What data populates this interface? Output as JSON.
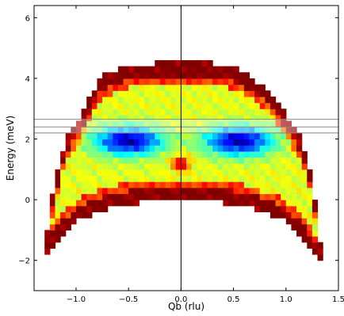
{
  "chart_data": {
    "type": "heatmap",
    "title": "",
    "xlabel": "Qb (rlu)",
    "ylabel": "Energy (meV)",
    "xlim": [
      -1.4,
      1.5
    ],
    "ylim": [
      -3.0,
      6.4
    ],
    "xticks": [
      -1.0,
      -0.5,
      0.0,
      0.5,
      1.0,
      1.5
    ],
    "xtick_labels": [
      "−1.0",
      "−0.5",
      "0.0",
      "0.5",
      "1.0",
      "1.5"
    ],
    "yticks": [
      -2,
      0,
      2,
      4,
      6
    ],
    "ytick_labels": [
      "−2",
      "0",
      "2",
      "4",
      "6"
    ],
    "grid": false,
    "colormap": "jet",
    "color_range": [
      0,
      1
    ],
    "vertical_line_x": 0.0,
    "horizontal_lines_y": [
      2.2,
      2.4,
      2.65
    ],
    "highlight_band_y": [
      2.2,
      2.65
    ],
    "cell_size": {
      "dx": 0.05,
      "dy": 0.2
    },
    "data_region": {
      "bottom_edge": [
        [
          -1.3,
          -1.8
        ],
        [
          -1.15,
          -1.2
        ],
        [
          -0.95,
          -0.6
        ],
        [
          -0.6,
          -0.2
        ],
        [
          -0.2,
          0.0
        ],
        [
          0.0,
          0.0
        ],
        [
          0.2,
          0.0
        ],
        [
          0.6,
          -0.2
        ],
        [
          0.95,
          -0.6
        ],
        [
          1.15,
          -1.2
        ],
        [
          1.35,
          -2.2
        ]
      ],
      "top_edge": [
        [
          -1.3,
          -1.8
        ],
        [
          -1.25,
          -0.2
        ],
        [
          -1.1,
          2.0
        ],
        [
          -0.95,
          2.7
        ],
        [
          -0.85,
          3.5
        ],
        [
          -0.75,
          4.1
        ],
        [
          -0.45,
          4.45
        ],
        [
          -0.05,
          4.55
        ],
        [
          0.25,
          4.55
        ],
        [
          0.55,
          4.3
        ],
        [
          0.85,
          3.6
        ],
        [
          1.0,
          2.8
        ],
        [
          1.15,
          2.0
        ],
        [
          1.25,
          0.8
        ],
        [
          1.35,
          -2.2
        ]
      ]
    },
    "intensity_features": [
      {
        "name": "low-intensity lobe (left)",
        "center": [
          -0.5,
          1.95
        ],
        "radius": [
          0.4,
          0.6
        ],
        "value": 0.05
      },
      {
        "name": "low-intensity lobe (right)",
        "center": [
          0.55,
          1.95
        ],
        "radius": [
          0.4,
          0.6
        ],
        "value": 0.05
      },
      {
        "name": "high-intensity spot (center)",
        "center": [
          0.0,
          1.2
        ],
        "radius": [
          0.1,
          0.3
        ],
        "value": 0.95
      },
      {
        "name": "high-intensity edge band",
        "region": "outer rim of the data region",
        "value": 1.0
      }
    ]
  }
}
